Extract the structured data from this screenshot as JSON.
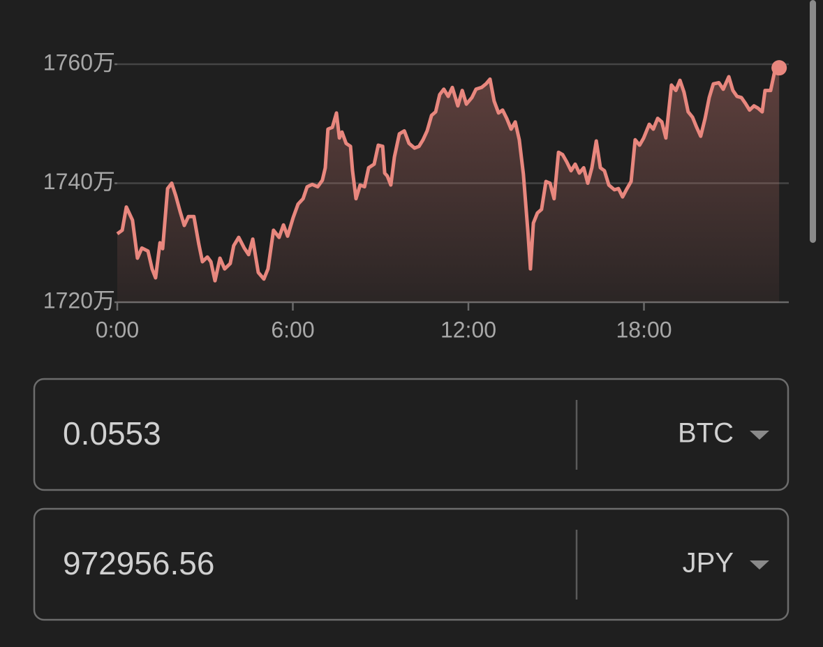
{
  "chart_data": {
    "type": "line",
    "x": [
      0,
      0.17,
      0.31,
      0.52,
      0.69,
      0.84,
      1.05,
      1.19,
      1.31,
      1.46,
      1.55,
      1.72,
      1.86,
      2.0,
      2.15,
      2.29,
      2.43,
      2.62,
      2.79,
      2.91,
      3.08,
      3.2,
      3.34,
      3.51,
      3.67,
      3.86,
      3.98,
      4.15,
      4.34,
      4.49,
      4.63,
      4.82,
      5.01,
      5.15,
      5.34,
      5.53,
      5.68,
      5.82,
      6.01,
      6.18,
      6.35,
      6.49,
      6.66,
      6.85,
      7.01,
      7.11,
      7.2,
      7.35,
      7.49,
      7.59,
      7.68,
      7.82,
      7.97,
      8.04,
      8.16,
      8.3,
      8.45,
      8.59,
      8.78,
      8.92,
      9.07,
      9.14,
      9.23,
      9.35,
      9.47,
      9.64,
      9.81,
      9.97,
      10.16,
      10.31,
      10.45,
      10.59,
      10.74,
      10.88,
      11.02,
      11.16,
      11.31,
      11.45,
      11.64,
      11.79,
      11.93,
      12.12,
      12.26,
      12.45,
      12.6,
      12.74,
      12.88,
      13.03,
      13.17,
      13.31,
      13.46,
      13.6,
      13.74,
      13.88,
      14.03,
      14.12,
      14.22,
      14.36,
      14.5,
      14.65,
      14.79,
      14.93,
      15.08,
      15.22,
      15.36,
      15.51,
      15.65,
      15.79,
      15.94,
      16.08,
      16.22,
      16.37,
      16.51,
      16.65,
      16.8,
      16.99,
      17.13,
      17.27,
      17.42,
      17.56,
      17.7,
      17.85,
      17.99,
      18.18,
      18.32,
      18.47,
      18.61,
      18.75,
      18.94,
      19.09,
      19.23,
      19.37,
      19.51,
      19.66,
      19.8,
      19.94,
      20.09,
      20.23,
      20.37,
      20.56,
      20.71,
      20.9,
      21.04,
      21.18,
      21.33,
      21.47,
      21.61,
      21.76,
      21.9,
      22.04,
      22.14,
      22.33,
      22.48,
      22.62
    ],
    "series": [
      {
        "color": "#e8877e",
        "values": [
          1731.5,
          1732.1,
          1736,
          1733.8,
          1727.4,
          1729.1,
          1728.6,
          1725.6,
          1724.1,
          1730,
          1729,
          1739.1,
          1740,
          1737.9,
          1735.2,
          1732.9,
          1734.4,
          1734.4,
          1729.7,
          1726.8,
          1727.6,
          1726.8,
          1723.6,
          1727.4,
          1725.6,
          1726.5,
          1729.5,
          1730.9,
          1729.1,
          1728,
          1730.6,
          1725,
          1723.9,
          1725.6,
          1732.1,
          1730.9,
          1733,
          1731.1,
          1734.2,
          1736.5,
          1737.4,
          1739.4,
          1739.8,
          1739.4,
          1740.5,
          1742.6,
          1749.1,
          1749.4,
          1751.8,
          1747.6,
          1748.6,
          1746.7,
          1746.2,
          1742.1,
          1737.4,
          1739.7,
          1739.4,
          1742.6,
          1743.2,
          1746.4,
          1746.2,
          1741.7,
          1741.2,
          1739.7,
          1744.4,
          1748.3,
          1748.8,
          1746.7,
          1745.9,
          1746.2,
          1747.3,
          1748.8,
          1751.4,
          1752,
          1754.9,
          1755.8,
          1754.6,
          1756.1,
          1753,
          1755.6,
          1753.3,
          1754.4,
          1755.8,
          1756.1,
          1756.7,
          1757.5,
          1753.8,
          1751.8,
          1752.3,
          1750.9,
          1749.1,
          1750.3,
          1747.3,
          1741.5,
          1732.1,
          1725.6,
          1733.3,
          1735,
          1735.6,
          1740.3,
          1740,
          1737.4,
          1745.2,
          1744.8,
          1743.6,
          1742.1,
          1743.2,
          1741.7,
          1742.6,
          1740,
          1742.6,
          1747.1,
          1742.6,
          1742.1,
          1739.7,
          1738.9,
          1739.1,
          1737.7,
          1739.1,
          1740.3,
          1747.3,
          1746.4,
          1747.6,
          1749.9,
          1749.1,
          1750.9,
          1750.3,
          1747.6,
          1756.5,
          1755.6,
          1757.3,
          1755.3,
          1752,
          1751.1,
          1749.4,
          1747.9,
          1750.9,
          1754.4,
          1756.7,
          1756.9,
          1755.8,
          1757.9,
          1755.6,
          1754.6,
          1754.4,
          1753.4,
          1752.3,
          1753,
          1752.6,
          1752,
          1755.6,
          1755.6,
          1759.1,
          1759.4
        ]
      }
    ],
    "xlim": [
      0,
      22.95
    ],
    "xticks": [
      {
        "value": 0,
        "label": "0:00"
      },
      {
        "value": 6,
        "label": "6:00"
      },
      {
        "value": 12,
        "label": "12:00"
      },
      {
        "value": 18,
        "label": "18:00"
      }
    ],
    "ylim": [
      1720,
      1762
    ],
    "yticks": [
      {
        "value": 1720,
        "label": "1720万"
      },
      {
        "value": 1740,
        "label": "1740万"
      },
      {
        "value": 1760,
        "label": "1760万"
      }
    ],
    "grid": true
  },
  "converter": {
    "rows": [
      {
        "amount": "0.0553",
        "currency": "BTC"
      },
      {
        "amount": "972956.56",
        "currency": "JPY"
      }
    ]
  }
}
